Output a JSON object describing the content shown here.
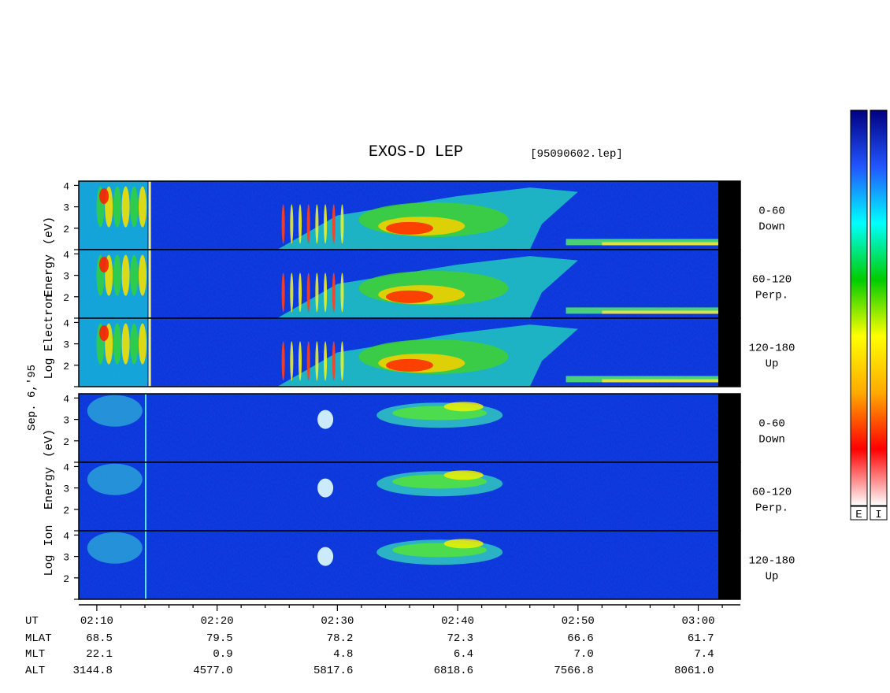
{
  "title": "EXOS-D LEP",
  "file_label": "[95090602.lep]",
  "date_label": "Sep. 6,'95",
  "electron_ylabel": [
    "Log",
    "Electron",
    "Energy",
    "(eV)"
  ],
  "ion_ylabel": [
    "Log",
    "Ion",
    "Energy",
    "(eV)"
  ],
  "colorbar_labels": [
    "E",
    "I"
  ],
  "colors": {
    "background": "#ffffff",
    "no_data": "#000000",
    "colorbar_stops": [
      "#ffffff",
      "#ff0000",
      "#ffaa00",
      "#ffff00",
      "#00cc00",
      "#00ffff",
      "#2255ff",
      "#000080"
    ]
  },
  "orbit_table": {
    "rows": [
      {
        "label": "UT",
        "values": [
          "02:10",
          "02:20",
          "02:30",
          "02:40",
          "02:50",
          "03:00"
        ]
      },
      {
        "label": "MLAT",
        "values": [
          "68.5",
          "79.5",
          "78.2",
          "72.3",
          "66.6",
          "61.7"
        ]
      },
      {
        "label": "MLT",
        "values": [
          "22.1",
          "0.9",
          "4.8",
          "6.4",
          "7.0",
          "7.4"
        ]
      },
      {
        "label": "ALT",
        "values": [
          "3144.8",
          "4577.0",
          "5817.6",
          "6818.6",
          "7566.8",
          "8061.0"
        ]
      }
    ]
  },
  "chart_data": {
    "type": "heatmap",
    "title": "EXOS-D LEP",
    "x_axis": {
      "label": "UT",
      "ticks": [
        "02:10",
        "02:20",
        "02:30",
        "02:40",
        "02:50",
        "03:00"
      ],
      "range": [
        "02:08:30",
        "03:03:30"
      ],
      "data_end": "03:01:40"
    },
    "y_axis": {
      "scale": "log10 energy (eV)",
      "ticks": [
        "2",
        "3",
        "4"
      ],
      "range": [
        1,
        4.2
      ]
    },
    "colorbar": {
      "labels": [
        "E",
        "I"
      ]
    },
    "panels": [
      {
        "species": "Electron",
        "pitch_angle": "0-60",
        "direction": "Down"
      },
      {
        "species": "Electron",
        "pitch_angle": "60-120",
        "direction": "Perp."
      },
      {
        "species": "Electron",
        "pitch_angle": "120-180",
        "direction": "Up"
      },
      {
        "species": "Ion",
        "pitch_angle": "0-60",
        "direction": "Down"
      },
      {
        "species": "Ion",
        "pitch_angle": "60-120",
        "direction": "Perp."
      },
      {
        "species": "Ion",
        "pitch_angle": "120-180",
        "direction": "Up"
      }
    ]
  }
}
